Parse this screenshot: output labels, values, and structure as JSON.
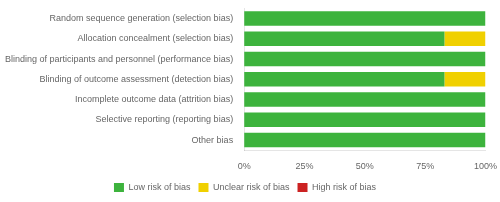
{
  "chart_data": {
    "type": "bar",
    "orientation": "horizontal",
    "stacked": true,
    "categories": [
      "Random sequence generation (selection bias)",
      "Allocation concealment (selection bias)",
      "Blinding of participants and personnel (performance bias)",
      "Blinding of outcome assessment (detection bias)",
      "Incomplete outcome data (attrition bias)",
      "Selective reporting (reporting bias)",
      "Other bias"
    ],
    "series": [
      {
        "name": "Low risk of bias",
        "color": "#3db33d",
        "values": [
          100,
          83,
          100,
          83,
          100,
          100,
          100
        ]
      },
      {
        "name": "Unclear risk of bias",
        "color": "#f0d000",
        "values": [
          0,
          17,
          0,
          17,
          0,
          0,
          0
        ]
      },
      {
        "name": "High risk of bias",
        "color": "#cc2222",
        "values": [
          0,
          0,
          0,
          0,
          0,
          0,
          0
        ]
      }
    ],
    "xlim": [
      0,
      100
    ],
    "xticks": [
      {
        "value": 0,
        "label": "0%"
      },
      {
        "value": 25,
        "label": "25%"
      },
      {
        "value": 50,
        "label": "50%"
      },
      {
        "value": 75,
        "label": "75%"
      },
      {
        "value": 100,
        "label": "100%"
      }
    ],
    "grid": false,
    "legend": "bottom"
  }
}
